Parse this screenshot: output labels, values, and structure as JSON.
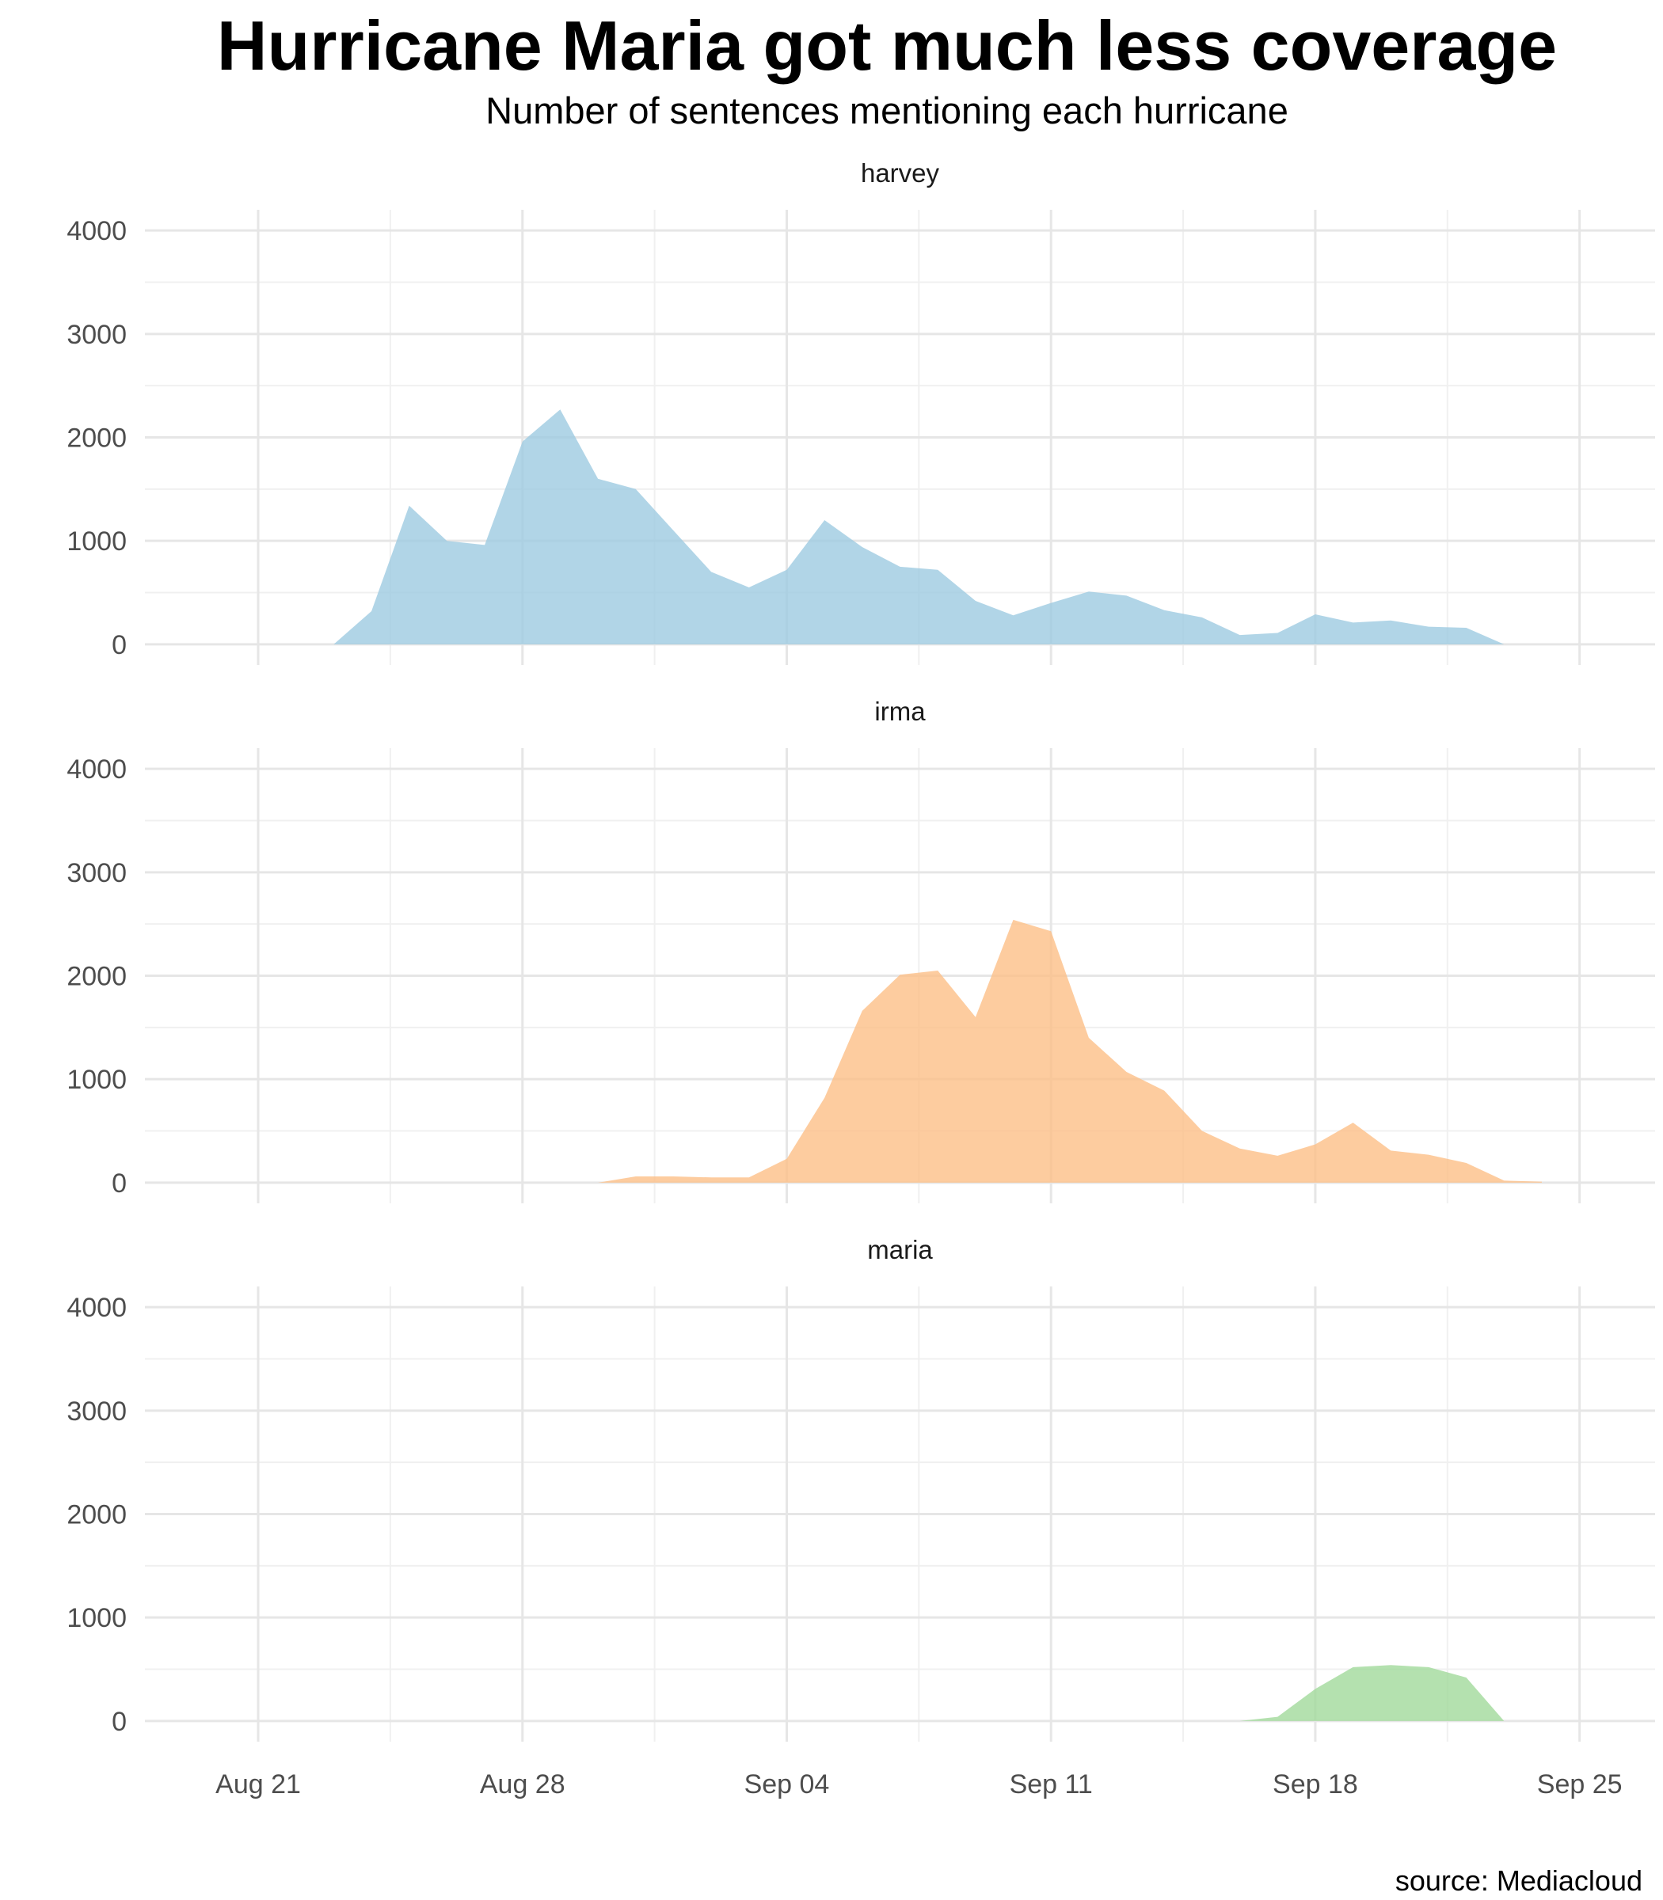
{
  "title": "Hurricane Maria got much less coverage",
  "subtitle": "Number of sentences mentioning each hurricane",
  "caption": "source: Mediacloud",
  "chart_data": {
    "type": "area",
    "facets": [
      "harvey",
      "irma",
      "maria"
    ],
    "x": [
      "2017-08-23",
      "2017-08-24",
      "2017-08-25",
      "2017-08-26",
      "2017-08-27",
      "2017-08-28",
      "2017-08-29",
      "2017-08-30",
      "2017-08-31",
      "2017-09-01",
      "2017-09-02",
      "2017-09-03",
      "2017-09-04",
      "2017-09-05",
      "2017-09-06",
      "2017-09-07",
      "2017-09-08",
      "2017-09-09",
      "2017-09-10",
      "2017-09-11",
      "2017-09-12",
      "2017-09-13",
      "2017-09-14",
      "2017-09-15",
      "2017-09-16",
      "2017-09-17",
      "2017-09-18",
      "2017-09-19",
      "2017-09-20",
      "2017-09-21",
      "2017-09-22",
      "2017-09-23",
      "2017-09-24"
    ],
    "series": [
      {
        "name": "harvey",
        "color": "#9ecae1",
        "values": [
          0,
          320,
          1340,
          1000,
          960,
          1960,
          2270,
          1600,
          1500,
          1100,
          700,
          550,
          720,
          1200,
          940,
          750,
          720,
          420,
          280,
          400,
          510,
          470,
          330,
          260,
          90,
          110,
          290,
          210,
          230,
          170,
          160,
          0,
          0
        ]
      },
      {
        "name": "irma",
        "color": "#fdbf87",
        "values": [
          0,
          0,
          0,
          0,
          0,
          0,
          0,
          0,
          60,
          60,
          50,
          50,
          230,
          820,
          1660,
          2010,
          2050,
          1600,
          2540,
          2430,
          1400,
          1070,
          890,
          500,
          330,
          260,
          370,
          580,
          310,
          270,
          190,
          20,
          10
        ]
      },
      {
        "name": "maria",
        "color": "#a1d99b",
        "values": [
          0,
          0,
          0,
          0,
          0,
          0,
          0,
          0,
          0,
          0,
          0,
          0,
          0,
          0,
          0,
          0,
          0,
          0,
          0,
          0,
          0,
          0,
          0,
          0,
          0,
          40,
          310,
          520,
          540,
          520,
          420,
          0,
          0
        ]
      }
    ],
    "x_ticks": [
      "Aug 21",
      "Aug 28",
      "Sep 04",
      "Sep 11",
      "Sep 18",
      "Sep 25"
    ],
    "x_tick_values": [
      "2017-08-21",
      "2017-08-28",
      "2017-09-04",
      "2017-09-11",
      "2017-09-18",
      "2017-09-25"
    ],
    "xlim": [
      "2017-08-18",
      "2017-09-27"
    ],
    "y_ticks": [
      "0",
      "1000",
      "2000",
      "3000",
      "4000"
    ],
    "y_tick_values": [
      0,
      1000,
      2000,
      3000,
      4000
    ],
    "ylim": [
      -200,
      4200
    ],
    "grid": true,
    "legend": "none"
  }
}
